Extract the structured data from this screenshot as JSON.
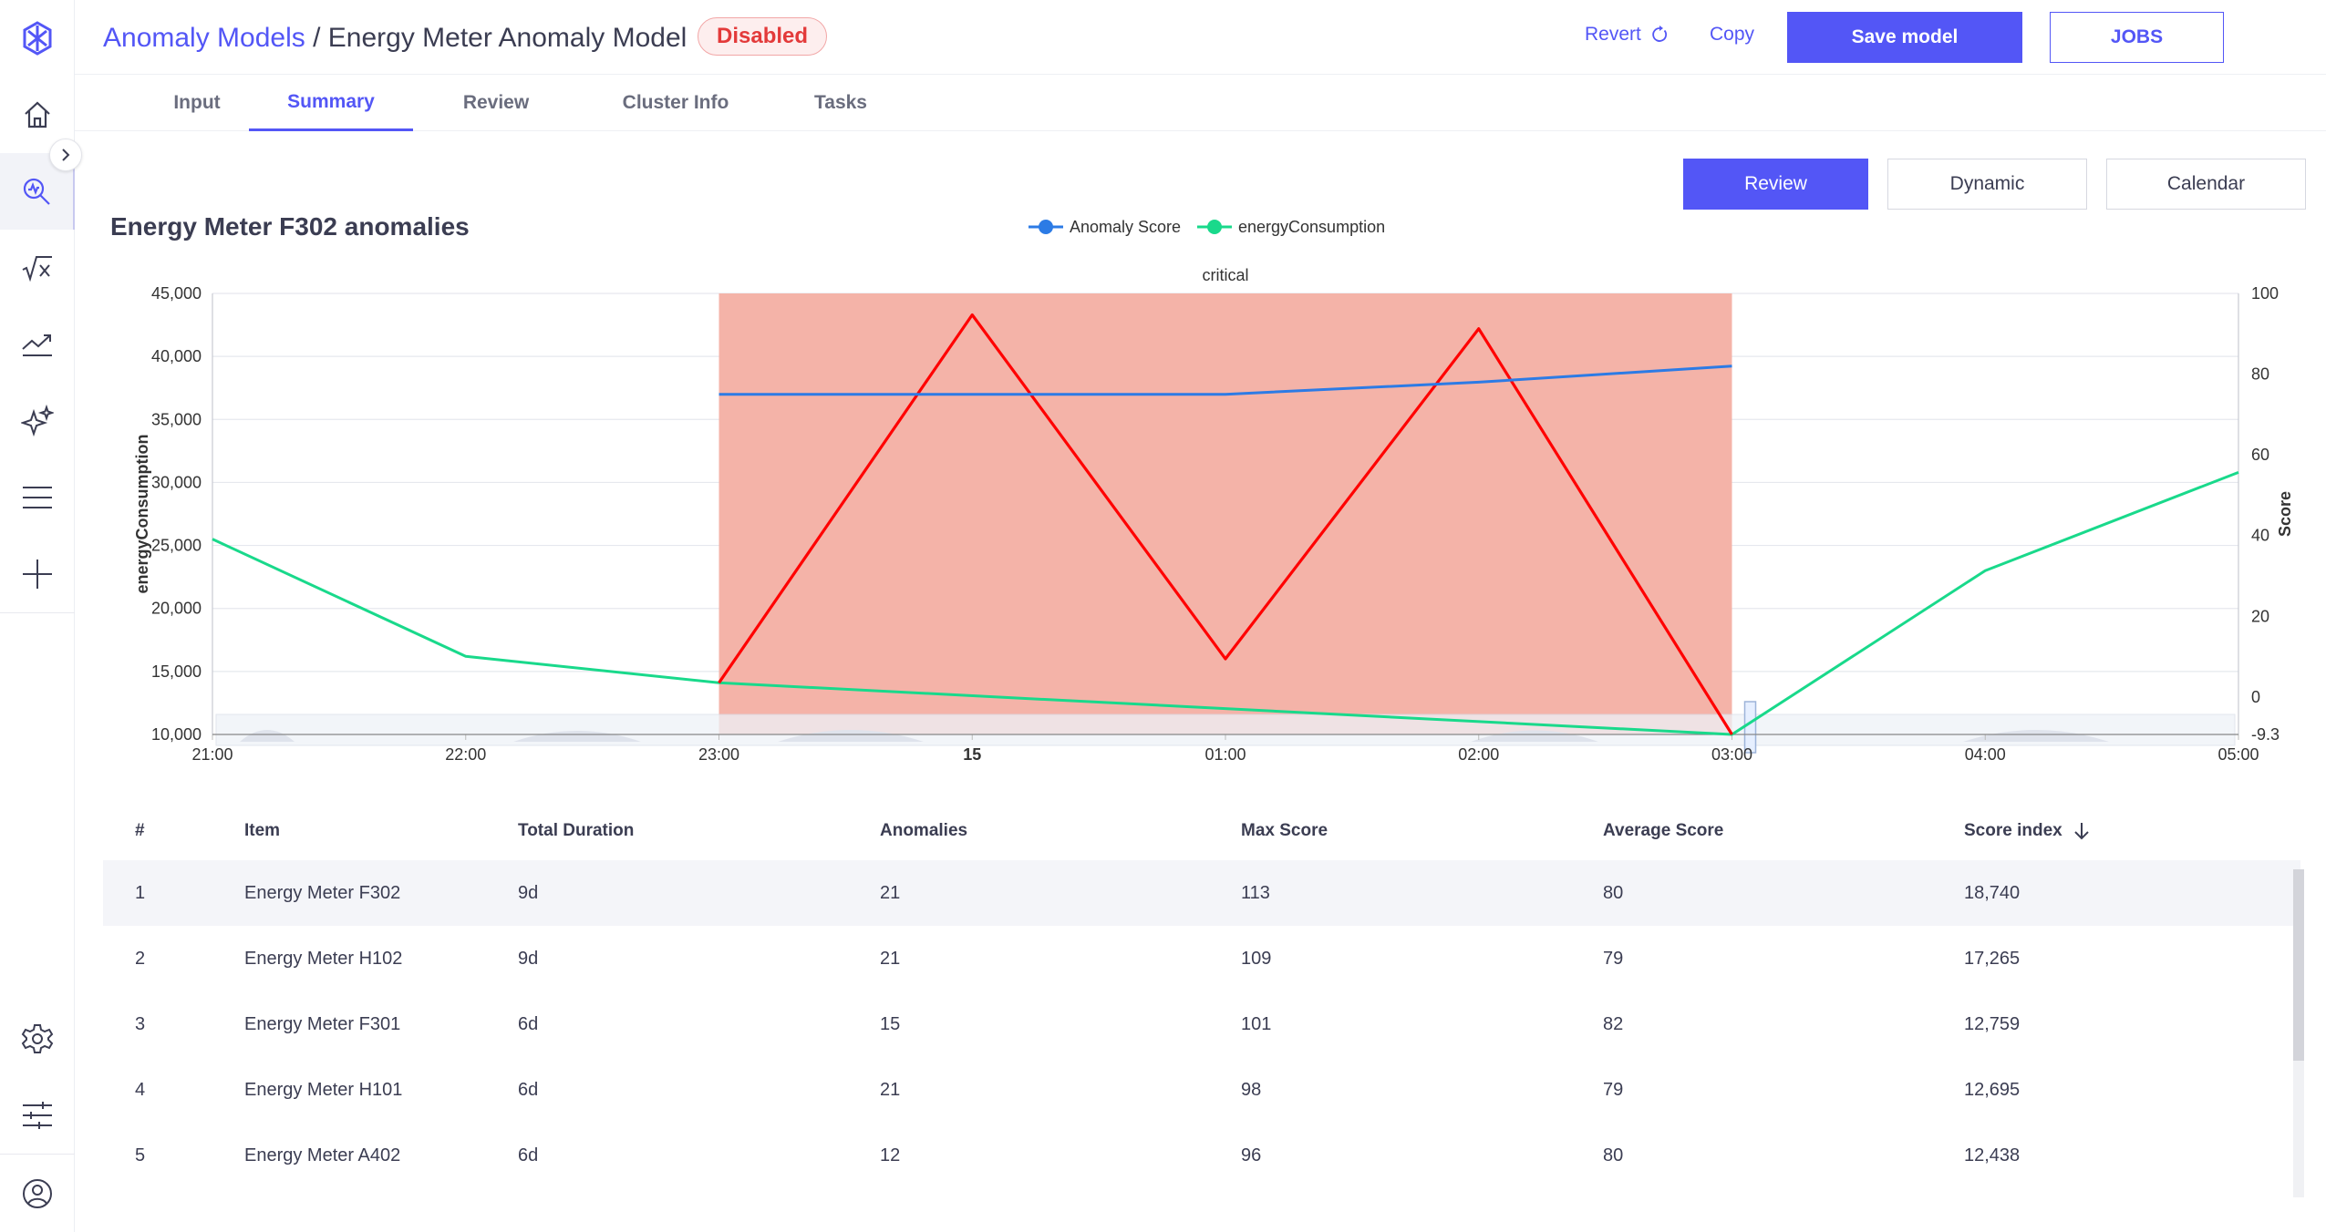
{
  "breadcrumb": {
    "parent": "Anomaly Models",
    "separator": " / ",
    "current": "Energy Meter Anomaly Model"
  },
  "status_badge": "Disabled",
  "header_actions": {
    "revert": "Revert",
    "copy": "Copy",
    "save": "Save model",
    "jobs": "JOBS"
  },
  "tabs": [
    "Input",
    "Summary",
    "Review",
    "Cluster Info",
    "Tasks"
  ],
  "active_tab": "Summary",
  "view_buttons": [
    "Review",
    "Dynamic",
    "Calendar"
  ],
  "active_view": "Review",
  "colors": {
    "accent": "#5356F6",
    "score_series": "#2C7BE5",
    "energy_series": "#19D98B",
    "anomaly_band": "#F4B3A8",
    "anomaly_line": "#FF0000",
    "disabled_badge": "#E33A3A"
  },
  "sidebar_icons": [
    "logo-icon",
    "home-icon",
    "search-icon",
    "sqrt-icon",
    "trend-icon",
    "sparkle-icon",
    "menu-icon",
    "plus-icon",
    "gear-icon",
    "sliders-icon",
    "user-icon"
  ],
  "chart_data": {
    "type": "line",
    "title": "Energy Meter F302 anomalies",
    "x": [
      "21:00",
      "22:00",
      "23:00",
      "00:00",
      "01:00",
      "02:00",
      "03:00",
      "04:00",
      "05:00"
    ],
    "x_tick_labels": [
      "21:00",
      "22:00",
      "23:00",
      "15",
      "01:00",
      "02:00",
      "03:00",
      "04:00",
      "05:00"
    ],
    "series": [
      {
        "name": "Anomaly Score",
        "axis": "right",
        "x": [
          "23:00",
          "00:00",
          "01:00",
          "02:00",
          "03:00"
        ],
        "values": [
          75,
          75,
          75,
          78,
          82
        ]
      },
      {
        "name": "energyConsumption",
        "axis": "left",
        "x": [
          "21:00",
          "22:00",
          "23:00",
          "03:00",
          "04:00",
          "05:00"
        ],
        "values": [
          25500,
          16200,
          14100,
          10000,
          23000,
          30800
        ]
      },
      {
        "axis": "left",
        "x": [
          "23:00",
          "00:00",
          "01:00",
          "02:00",
          "03:00"
        ],
        "values": [
          14100,
          43300,
          16000,
          42200,
          10000
        ]
      }
    ],
    "legend": [
      "Anomaly Score",
      "energyConsumption"
    ],
    "legend_position": "top-center",
    "band": {
      "label": "critical",
      "from": "23:00",
      "to": "03:00"
    },
    "ylabel": "energyConsumption",
    "y2label": "Score",
    "ylim": [
      10000,
      45000
    ],
    "y_ticks": [
      "10,000",
      "15,000",
      "20,000",
      "25,000",
      "30,000",
      "35,000",
      "40,000",
      "45,000"
    ],
    "y2lim": [
      -9.3,
      100
    ],
    "y2_ticks": [
      "-9.3",
      "0",
      "20",
      "40",
      "60",
      "80",
      "100"
    ]
  },
  "table": {
    "columns": [
      "#",
      "Item",
      "Total Duration",
      "Anomalies",
      "Max Score",
      "Average Score",
      "Score index"
    ],
    "sort_column": "Score index",
    "rows": [
      [
        "1",
        "Energy Meter F302",
        "9d",
        "21",
        "113",
        "80",
        "18,740"
      ],
      [
        "2",
        "Energy Meter H102",
        "9d",
        "21",
        "109",
        "79",
        "17,265"
      ],
      [
        "3",
        "Energy Meter F301",
        "6d",
        "15",
        "101",
        "82",
        "12,759"
      ],
      [
        "4",
        "Energy Meter H101",
        "6d",
        "21",
        "98",
        "79",
        "12,695"
      ],
      [
        "5",
        "Energy Meter A402",
        "6d",
        "12",
        "96",
        "80",
        "12,438"
      ]
    ]
  }
}
